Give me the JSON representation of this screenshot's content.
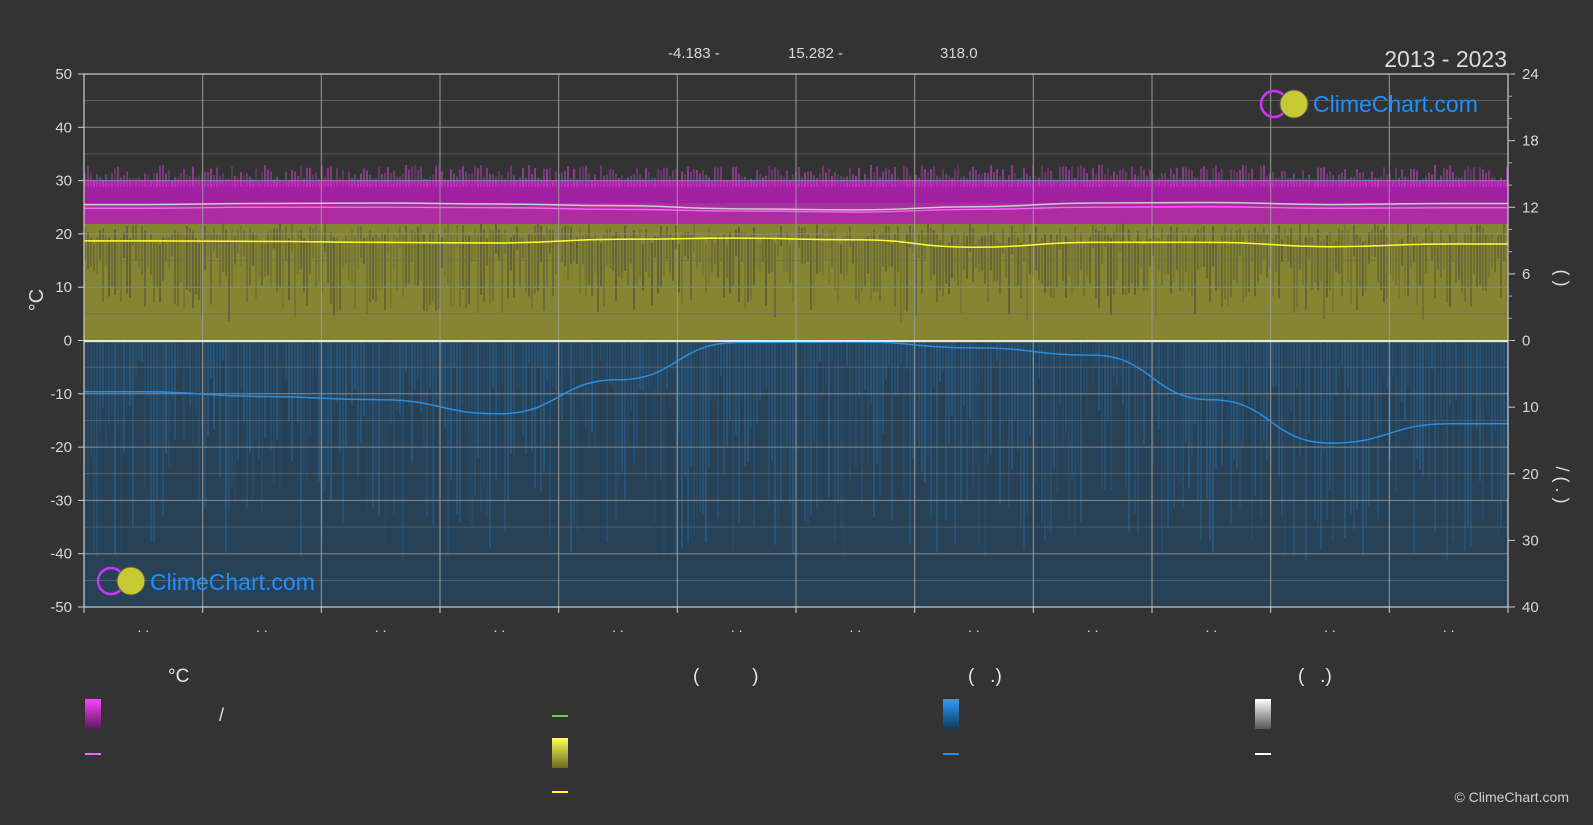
{
  "header": {
    "coords": [
      "-4.183 -",
      "15.282 -",
      "318.0"
    ],
    "period": "2013 - 2023"
  },
  "logo_text": "ClimeChart.com",
  "copyright": "© ClimeChart.com",
  "legend": {
    "col1_head": "°C",
    "col2_head": "(          )",
    "col3_head": "(   .)",
    "col4_head": "(   .)",
    "slash": "/"
  },
  "colors": {
    "background": "#333333",
    "temp_band": "#c21cc2",
    "sun_band": "#9e9e2e",
    "rain_band": "#1e5c8c",
    "max_line": "#ff66ff",
    "mean_line": "#cccccc",
    "sun_line": "#ffff33",
    "rain_line": "#2a8ee0",
    "daylight_line": "#55dd33",
    "zero_line": "#e0e0e0",
    "logo_text": "#1e90ff"
  },
  "chart_data": {
    "type": "area",
    "months": 12,
    "x_tick_labels": [
      ". .",
      ". .",
      ". .",
      ". .",
      ". .",
      ". .",
      ". .",
      ". .",
      ". .",
      ". .",
      ". .",
      ". ."
    ],
    "left_axis": {
      "label": "°C",
      "ticks": [
        50,
        40,
        30,
        20,
        10,
        0,
        -10,
        -20,
        -30,
        -40,
        -50
      ],
      "range": [
        -50,
        50
      ]
    },
    "right_axis_top": {
      "label": "(    )",
      "ticks": [
        24,
        18,
        12,
        6,
        0
      ],
      "range": [
        0,
        24
      ]
    },
    "right_axis_bottom": {
      "label": "/   (  .  )",
      "ticks": [
        0,
        10,
        20,
        30,
        40
      ],
      "range": [
        0,
        40
      ]
    },
    "temp_band_range": [
      22,
      30
    ],
    "series": [
      {
        "values": [
          25.5,
          25.7,
          25.8,
          25.6,
          25.3,
          24.7,
          24.5,
          25.1,
          25.8,
          25.9,
          25.5,
          25.7
        ]
      },
      {
        "values": [
          24.8,
          25.0,
          25.0,
          24.9,
          24.6,
          24.3,
          24.1,
          24.6,
          25.0,
          25.1,
          24.8,
          24.9
        ]
      },
      {
        "values": [
          18.7,
          18.6,
          18.4,
          18.3,
          19.0,
          19.2,
          18.9,
          17.5,
          18.4,
          18.4,
          17.6,
          18.1
        ]
      },
      {
        "values": [
          7.7,
          8.4,
          8.9,
          11.0,
          5.9,
          0.3,
          0.2,
          1.1,
          2.2,
          8.9,
          15.4,
          12.5
        ]
      }
    ]
  }
}
